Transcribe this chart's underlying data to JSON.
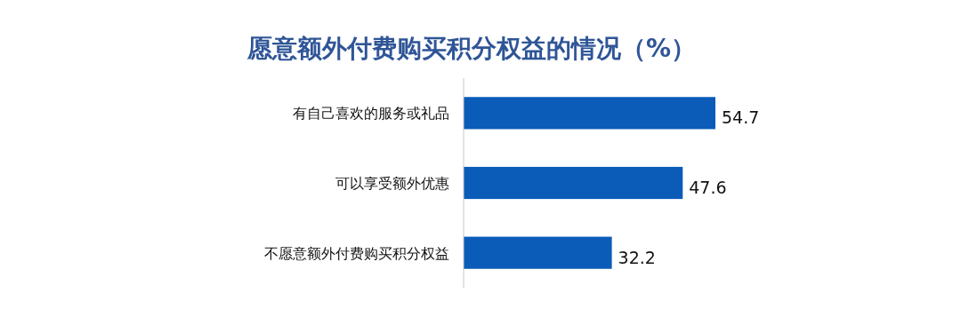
{
  "chart_data": {
    "type": "bar",
    "orientation": "horizontal",
    "title": "愿意额外付费购买积分权益的情况（%）",
    "categories": [
      "有自己喜欢的服务或礼品",
      "可以享受额外优惠",
      "不愿意额外付费购买积分权益"
    ],
    "values": [
      54.7,
      47.6,
      32.2
    ],
    "color": "#0a5cb8",
    "data_labels": true
  }
}
